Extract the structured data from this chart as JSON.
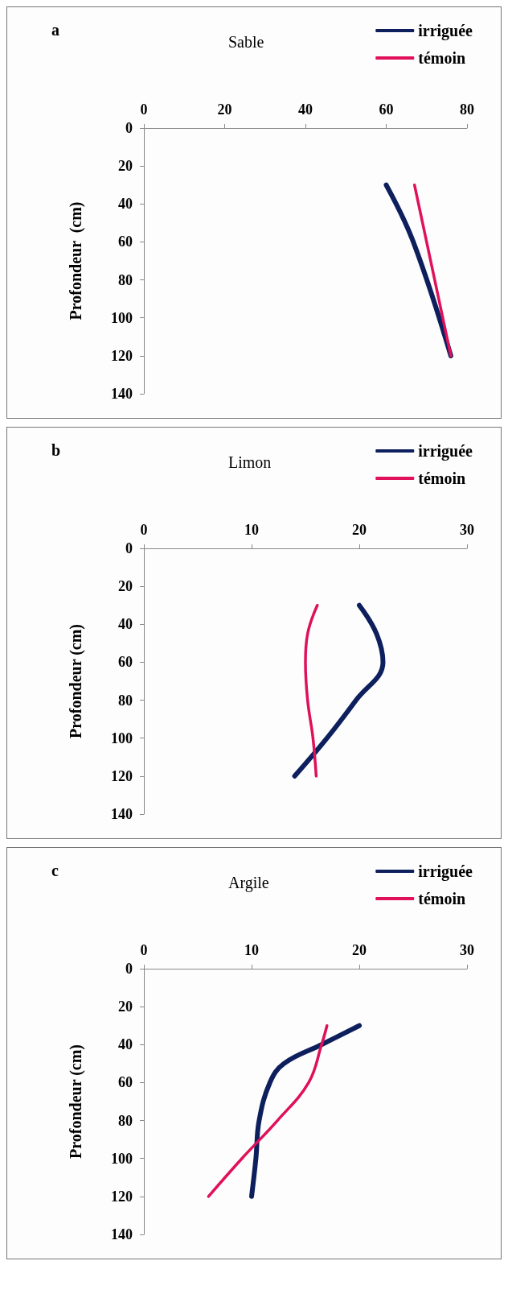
{
  "chart_data": [
    {
      "type": "line",
      "title": "Sable",
      "ylabel": "Profondeur  (cm)",
      "annotations": [
        "a"
      ],
      "legend": "top right",
      "marker": "none",
      "line_style": "solid",
      "grid": false,
      "xlim": [
        0,
        80
      ],
      "xticks": [
        0,
        20,
        40,
        60,
        80
      ],
      "ylim": [
        140,
        0
      ],
      "yticks": [
        0,
        20,
        40,
        60,
        80,
        100,
        120,
        140
      ],
      "series": [
        {
          "name": "irriguée",
          "color": "#0d1f5c",
          "x": [
            60,
            66.7,
            76
          ],
          "values": [
            30,
            60,
            120
          ]
        },
        {
          "name": "témoin",
          "color": "#e0105a",
          "x": [
            67,
            70,
            76
          ],
          "values": [
            30,
            60,
            120
          ]
        }
      ]
    },
    {
      "type": "line",
      "title": "Limon",
      "ylabel": "Profondeur (cm)",
      "annotations": [
        "b"
      ],
      "legend": "top right",
      "marker": "none",
      "line_style": "solid",
      "grid": false,
      "xlim": [
        0,
        30
      ],
      "xticks": [
        0,
        10,
        20,
        30
      ],
      "ylim": [
        140,
        0
      ],
      "yticks": [
        0,
        20,
        40,
        60,
        80,
        100,
        120,
        140
      ],
      "series": [
        {
          "name": "irriguée",
          "color": "#0d1f5c",
          "x": [
            20,
            21.6,
            22.2,
            19.7,
            17,
            14
          ],
          "values": [
            30,
            45,
            60,
            80,
            100,
            120
          ]
        },
        {
          "name": "témoin",
          "color": "#e0105a",
          "x": [
            16.1,
            15.2,
            15,
            15.2,
            15.7,
            16
          ],
          "values": [
            30,
            45,
            60,
            80,
            100,
            120
          ]
        }
      ]
    },
    {
      "type": "line",
      "title": "Argile",
      "ylabel": "Profondeur (cm)",
      "annotations": [
        "c"
      ],
      "legend": "top right",
      "marker": "none",
      "line_style": "solid",
      "grid": false,
      "xlim": [
        0,
        30
      ],
      "xticks": [
        0,
        10,
        20,
        30
      ],
      "ylim": [
        140,
        0
      ],
      "yticks": [
        0,
        20,
        40,
        60,
        80,
        100,
        120,
        140
      ],
      "series": [
        {
          "name": "irriguée",
          "color": "#0d1f5c",
          "x": [
            20,
            16.5,
            13,
            11.7,
            10.7,
            10.4,
            10
          ],
          "values": [
            30,
            40,
            50,
            60,
            80,
            100,
            120
          ]
        },
        {
          "name": "témoin",
          "color": "#e0105a",
          "x": [
            17,
            16.5,
            15.3,
            12.4,
            9.1,
            6
          ],
          "values": [
            30,
            40,
            60,
            80,
            100,
            120
          ]
        }
      ]
    }
  ]
}
